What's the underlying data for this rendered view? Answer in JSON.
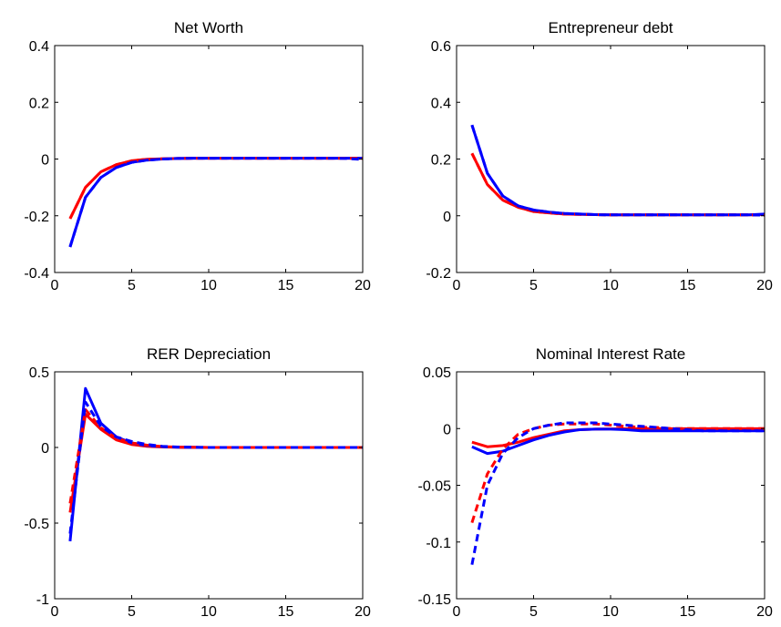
{
  "chart_data": [
    {
      "type": "line",
      "title": "Net Worth",
      "xlabel": "",
      "ylabel": "",
      "xlim": [
        0,
        20
      ],
      "ylim": [
        -0.4,
        0.4
      ],
      "xticks": [
        0,
        5,
        10,
        15,
        20
      ],
      "xtick_labels": [
        "0",
        "5",
        "10",
        "15",
        "20"
      ],
      "yticks": [
        -0.4,
        -0.2,
        0,
        0.2,
        0.4
      ],
      "ytick_labels": [
        "-0.4",
        "-0.2",
        "0",
        "0.2",
        "0.4"
      ],
      "grid": false,
      "x": [
        1,
        2,
        3,
        4,
        5,
        6,
        7,
        8,
        9,
        10,
        11,
        12,
        13,
        14,
        15,
        16,
        17,
        18,
        19,
        20
      ],
      "series": [
        {
          "color": "#ff0000",
          "dash": false,
          "values": [
            -0.21,
            -0.1,
            -0.045,
            -0.02,
            -0.006,
            -0.001,
            0.001,
            0.002,
            0.003,
            0.003,
            0.003,
            0.003,
            0.003,
            0.003,
            0.003,
            0.003,
            0.003,
            0.003,
            0.003,
            0.003
          ]
        },
        {
          "color": "#0000ff",
          "dash": false,
          "values": [
            -0.31,
            -0.135,
            -0.065,
            -0.03,
            -0.012,
            -0.004,
            0,
            0.002,
            0.003,
            0.003,
            0.003,
            0.003,
            0.003,
            0.003,
            0.003,
            0.003,
            0.003,
            0.003,
            0.003,
            0.003
          ]
        },
        {
          "color": "#ff0000",
          "dash": true,
          "values": [
            -0.21,
            -0.1,
            -0.045,
            -0.02,
            -0.006,
            -0.001,
            0.001,
            0.002,
            0.003,
            0.003,
            0.003,
            0.003,
            0.003,
            0.003,
            0.003,
            0.003,
            0.003,
            0.003,
            0.003,
            0.002
          ]
        },
        {
          "color": "#0000ff",
          "dash": true,
          "values": [
            -0.31,
            -0.135,
            -0.065,
            -0.03,
            -0.012,
            -0.004,
            0,
            0.002,
            0.003,
            0.003,
            0.003,
            0.003,
            0.003,
            0.003,
            0.003,
            0.003,
            0.003,
            0.003,
            0.002,
            -0.002
          ]
        }
      ]
    },
    {
      "type": "line",
      "title": "Entrepreneur debt",
      "xlabel": "",
      "ylabel": "",
      "xlim": [
        0,
        20
      ],
      "ylim": [
        -0.2,
        0.6
      ],
      "xticks": [
        0,
        5,
        10,
        15,
        20
      ],
      "xtick_labels": [
        "0",
        "5",
        "10",
        "15",
        "20"
      ],
      "yticks": [
        -0.2,
        0,
        0.2,
        0.4,
        0.6
      ],
      "ytick_labels": [
        "-0.2",
        "0",
        "0.2",
        "0.4",
        "0.6"
      ],
      "grid": false,
      "x": [
        1,
        2,
        3,
        4,
        5,
        6,
        7,
        8,
        9,
        10,
        11,
        12,
        13,
        14,
        15,
        16,
        17,
        18,
        19,
        20
      ],
      "series": [
        {
          "color": "#ff0000",
          "dash": false,
          "values": [
            0.22,
            0.11,
            0.055,
            0.03,
            0.015,
            0.01,
            0.006,
            0.005,
            0.004,
            0.003,
            0.003,
            0.003,
            0.003,
            0.003,
            0.003,
            0.003,
            0.003,
            0.003,
            0.003,
            0.004
          ]
        },
        {
          "color": "#0000ff",
          "dash": false,
          "values": [
            0.32,
            0.15,
            0.07,
            0.035,
            0.02,
            0.013,
            0.008,
            0.006,
            0.004,
            0.003,
            0.003,
            0.003,
            0.003,
            0.003,
            0.003,
            0.003,
            0.003,
            0.003,
            0.003,
            0.006
          ]
        },
        {
          "color": "#ff0000",
          "dash": true,
          "values": [
            0.22,
            0.11,
            0.055,
            0.03,
            0.015,
            0.01,
            0.006,
            0.005,
            0.004,
            0.003,
            0.003,
            0.003,
            0.003,
            0.003,
            0.003,
            0.003,
            0.003,
            0.003,
            0.003,
            0.002
          ]
        },
        {
          "color": "#0000ff",
          "dash": true,
          "values": [
            0.32,
            0.15,
            0.07,
            0.035,
            0.02,
            0.013,
            0.008,
            0.006,
            0.004,
            0.003,
            0.003,
            0.003,
            0.003,
            0.003,
            0.003,
            0.003,
            0.003,
            0.003,
            0.003,
            0.002
          ]
        }
      ]
    },
    {
      "type": "line",
      "title": "RER Depreciation",
      "xlabel": "",
      "ylabel": "",
      "xlim": [
        0,
        20
      ],
      "ylim": [
        -1,
        0.5
      ],
      "xticks": [
        0,
        5,
        10,
        15,
        20
      ],
      "xtick_labels": [
        "0",
        "5",
        "10",
        "15",
        "20"
      ],
      "yticks": [
        -1,
        -0.5,
        0,
        0.5
      ],
      "ytick_labels": [
        "-1",
        "-0.5",
        "0",
        "0.5"
      ],
      "grid": false,
      "x": [
        1,
        2,
        3,
        4,
        5,
        6,
        7,
        8,
        9,
        10,
        11,
        12,
        13,
        14,
        15,
        16,
        17,
        18,
        19,
        20
      ],
      "series": [
        {
          "color": "#ff0000",
          "dash": false,
          "values": [
            -0.43,
            0.22,
            0.12,
            0.05,
            0.02,
            0.007,
            0.003,
            0.001,
            0,
            0,
            0,
            0,
            0,
            0,
            0,
            0,
            0,
            0,
            0,
            0
          ]
        },
        {
          "color": "#0000ff",
          "dash": false,
          "values": [
            -0.62,
            0.39,
            0.16,
            0.07,
            0.03,
            0.012,
            0.005,
            0.002,
            0.001,
            0,
            0,
            0,
            0,
            0,
            0,
            0,
            0,
            0,
            0,
            0
          ]
        },
        {
          "color": "#ff0000",
          "dash": true,
          "values": [
            -0.37,
            0.25,
            0.13,
            0.06,
            0.03,
            0.015,
            0.006,
            0.002,
            0.001,
            0,
            0,
            0,
            0,
            0,
            0,
            0,
            0,
            0,
            0,
            0
          ]
        },
        {
          "color": "#0000ff",
          "dash": true,
          "values": [
            -0.57,
            0.3,
            0.14,
            0.07,
            0.04,
            0.02,
            0.008,
            0.003,
            0.001,
            0,
            0,
            0,
            0,
            0,
            0,
            0,
            0,
            0,
            0,
            0
          ]
        }
      ]
    },
    {
      "type": "line",
      "title": "Nominal Interest Rate",
      "xlabel": "",
      "ylabel": "",
      "xlim": [
        0,
        20
      ],
      "ylim": [
        -0.15,
        0.05
      ],
      "xticks": [
        0,
        5,
        10,
        15,
        20
      ],
      "xtick_labels": [
        "0",
        "5",
        "10",
        "15",
        "20"
      ],
      "yticks": [
        -0.15,
        -0.1,
        -0.05,
        0,
        0.05
      ],
      "ytick_labels": [
        "-0.15",
        "-0.1",
        "-0.05",
        "0",
        "0.05"
      ],
      "grid": false,
      "x": [
        1,
        2,
        3,
        4,
        5,
        6,
        7,
        8,
        9,
        10,
        11,
        12,
        13,
        14,
        15,
        16,
        17,
        18,
        19,
        20
      ],
      "series": [
        {
          "color": "#ff0000",
          "dash": false,
          "values": [
            -0.012,
            -0.016,
            -0.015,
            -0.012,
            -0.008,
            -0.005,
            -0.002,
            -0.001,
            -0.0005,
            -0.0003,
            -0.0002,
            -0.0001,
            -0.0001,
            -0.0001,
            -0.0001,
            -0.0001,
            -0.0001,
            -0.0001,
            -0.0001,
            -0.0001
          ]
        },
        {
          "color": "#0000ff",
          "dash": false,
          "values": [
            -0.016,
            -0.022,
            -0.02,
            -0.015,
            -0.01,
            -0.006,
            -0.003,
            -0.001,
            -0.0005,
            -0.0005,
            -0.001,
            -0.002,
            -0.002,
            -0.002,
            -0.002,
            -0.002,
            -0.002,
            -0.002,
            -0.002,
            -0.002
          ]
        },
        {
          "color": "#ff0000",
          "dash": true,
          "values": [
            -0.083,
            -0.04,
            -0.018,
            -0.005,
            0,
            0.003,
            0.004,
            0.004,
            0.004,
            0.003,
            0.002,
            0.001,
            0.001,
            0,
            0,
            0,
            0,
            0,
            0,
            0
          ]
        },
        {
          "color": "#0000ff",
          "dash": true,
          "values": [
            -0.12,
            -0.05,
            -0.022,
            -0.008,
            0,
            0.003,
            0.005,
            0.005,
            0.005,
            0.004,
            0.003,
            0.002,
            0.001,
            0,
            -0.001,
            -0.002,
            -0.002,
            -0.002,
            -0.002,
            -0.002
          ]
        }
      ]
    }
  ]
}
